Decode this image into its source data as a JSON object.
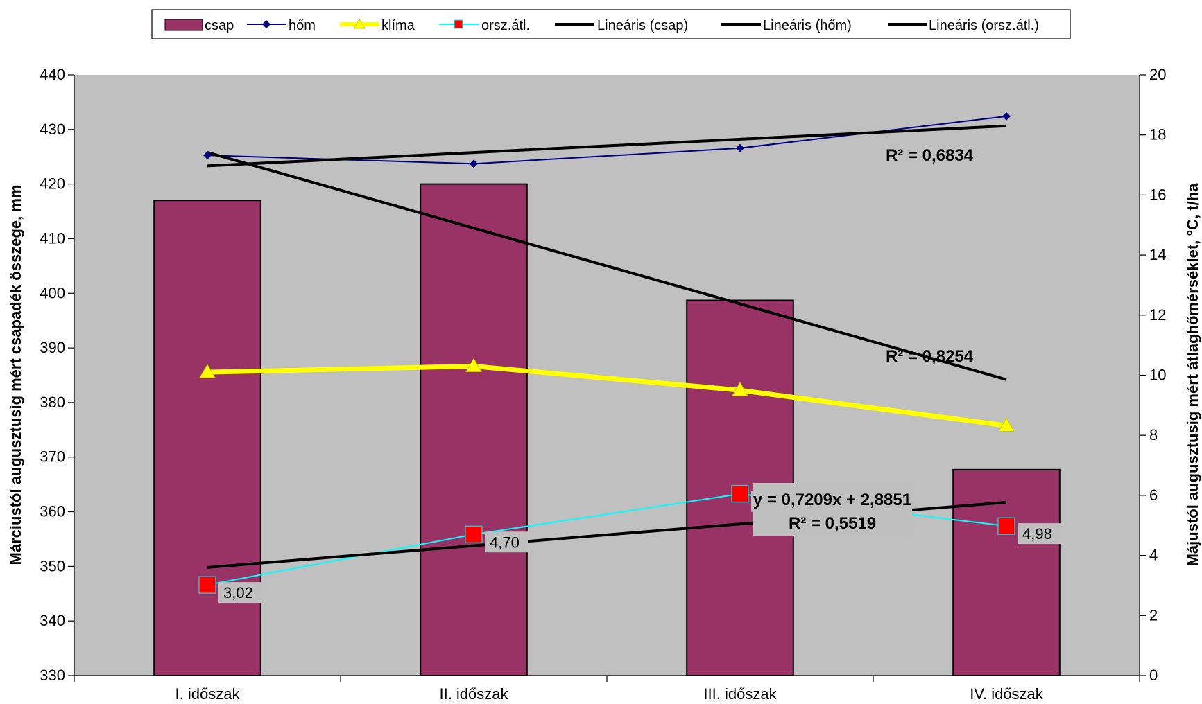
{
  "chart_data": {
    "type": "bar",
    "categories": [
      "I. időszak",
      "II. időszak",
      "III. időszak",
      "IV. időszak"
    ],
    "series": [
      {
        "name": "csap",
        "kind": "bar",
        "axis": "left",
        "values": [
          417,
          420,
          398.7,
          367.7
        ]
      },
      {
        "name": "hőm",
        "kind": "line",
        "axis": "right",
        "values": [
          17.32,
          17.04,
          17.56,
          18.62
        ]
      },
      {
        "name": "klíma",
        "kind": "line",
        "axis": "right",
        "values": [
          10.1,
          10.3,
          9.5,
          8.32
        ]
      },
      {
        "name": "orsz.átl.",
        "kind": "line",
        "axis": "right",
        "values": [
          3.02,
          4.7,
          6.05,
          4.98
        ],
        "labels": [
          "3,02",
          "4,70",
          "6,05",
          "4,98"
        ]
      },
      {
        "name": "Lineáris (csap)",
        "kind": "trendline",
        "axis": "left",
        "values": [
          425.8,
          411.9,
          398.0,
          384.2
        ]
      },
      {
        "name": "Lineáris (hőm)",
        "kind": "trendline",
        "axis": "right",
        "values": [
          16.97,
          17.4,
          17.84,
          18.3
        ]
      },
      {
        "name": "Lineáris (orsz.átl.)",
        "kind": "trendline",
        "axis": "right",
        "values": [
          3.6,
          4.33,
          5.05,
          5.77
        ]
      }
    ],
    "annotations": [
      "R² = 0,6834",
      "R² = 0,8254",
      "y = 0,7209x + 2,8851",
      "R² = 0,5519"
    ],
    "ylabel": "Márciustól augusztusig mért csapadék összege, mm",
    "y2label": "Májustól augusztusig mért átlaghőmérséklet, °C, t/ha",
    "ylim": [
      330,
      440
    ],
    "y2lim": [
      0,
      20
    ],
    "yticks": [
      "330",
      "340",
      "350",
      "360",
      "370",
      "380",
      "390",
      "400",
      "410",
      "420",
      "430",
      "440"
    ],
    "y2ticks": [
      "0",
      "2",
      "4",
      "6",
      "8",
      "10",
      "12",
      "14",
      "16",
      "18",
      "20"
    ],
    "grid": false,
    "legend_position": "top",
    "colors": {
      "plot_bg": "#c0c0c0",
      "bar": "#993366",
      "hom": "#000080",
      "klima": "#ffff00",
      "orsz_line": "#00ffff",
      "orsz_marker": "#ff0000",
      "trend": "#000000"
    }
  }
}
